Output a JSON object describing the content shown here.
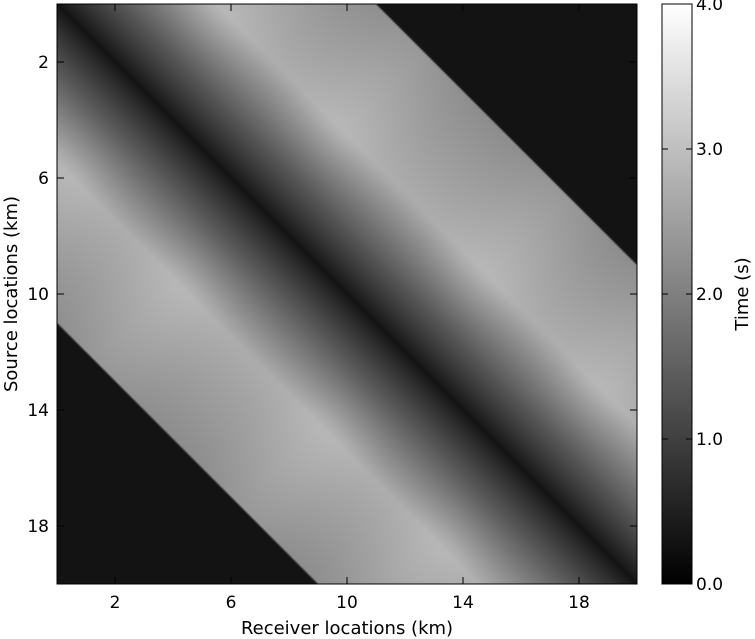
{
  "chart_data": {
    "type": "heatmap",
    "title": "",
    "xlabel": "Receiver locations (km)",
    "ylabel": "Source locations (km)",
    "xlim": [
      0,
      20
    ],
    "ylim": [
      20,
      0
    ],
    "xticks": [
      2,
      6,
      10,
      14,
      18
    ],
    "yticks": [
      2,
      6,
      10,
      14,
      18
    ],
    "colormap": "gray",
    "colorbar": {
      "label": "Time (s)",
      "range": [
        0.0,
        4.0
      ],
      "ticks": [
        "0.0",
        "1.0",
        "2.0",
        "3.0",
        "4.0"
      ]
    },
    "description_values": {
      "max_offset_km": 11,
      "outside_aperture_time_s": 0.0,
      "zero_offset_time_s": 0.3,
      "peak_time_s": 2.7,
      "bump_locations_km": [
        3,
        7,
        12,
        16
      ]
    }
  }
}
